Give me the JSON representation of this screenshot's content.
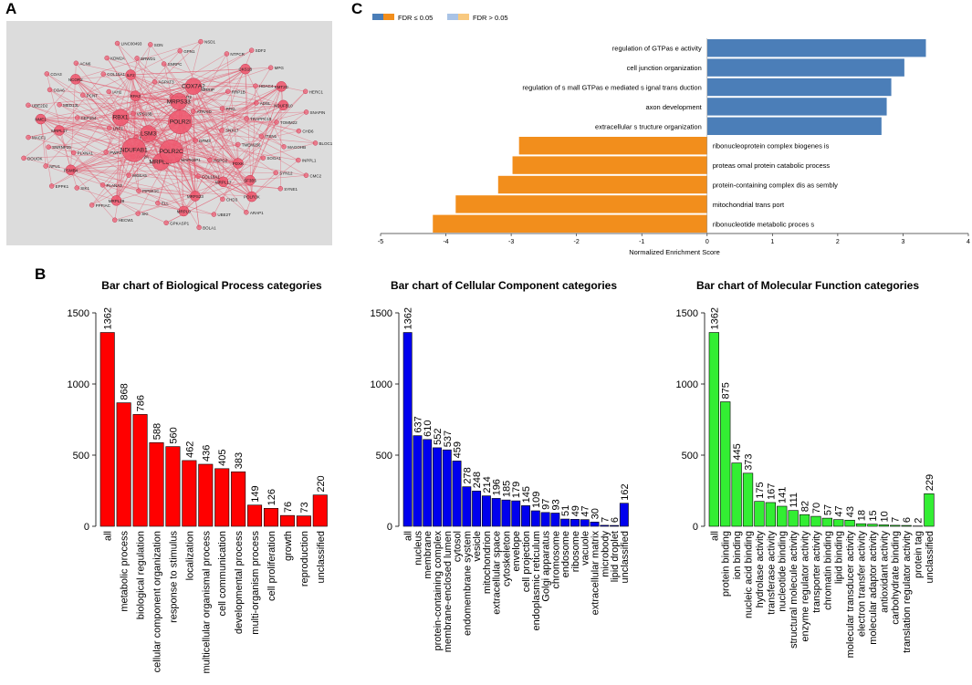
{
  "panels": {
    "a": "A",
    "b": "B",
    "c": "C"
  },
  "network": {
    "colors": {
      "background": "#dcdcdc",
      "edge": "#e35a6e",
      "node": "#ee5a70",
      "node_stroke": "#c43a52"
    },
    "nodes": [
      {
        "label": "DPM3",
        "weight": 1
      },
      {
        "label": "HAX1",
        "weight": 1
      },
      {
        "label": "ATRAID",
        "weight": 1
      },
      {
        "label": "MAPKBP1",
        "weight": 1
      },
      {
        "label": "VPS13B",
        "weight": 1
      },
      {
        "label": "SNX17",
        "weight": 1
      },
      {
        "label": "DIP2A",
        "weight": 1
      },
      {
        "label": "POFUT2",
        "weight": 1
      },
      {
        "label": "HSPG2",
        "weight": 1
      },
      {
        "label": "LRP1",
        "weight": 1
      },
      {
        "label": "PFKL",
        "weight": 1
      },
      {
        "label": "MRPL27",
        "weight": 3
      },
      {
        "label": "RPA3",
        "weight": 2
      },
      {
        "label": "TMEM256",
        "weight": 1
      },
      {
        "label": "PWP2",
        "weight": 1
      },
      {
        "label": "MRRIP",
        "weight": 1
      },
      {
        "label": "COL16A1",
        "weight": 1
      },
      {
        "label": "RBX1",
        "weight": 3
      },
      {
        "label": "TRAPPC10",
        "weight": 1
      },
      {
        "label": "MGEA5",
        "weight": 1
      },
      {
        "label": "AGPAT3",
        "weight": 1
      },
      {
        "label": "PDXK",
        "weight": 2
      },
      {
        "label": "LSM3",
        "weight": 3
      },
      {
        "label": "RRP1B",
        "weight": 1
      },
      {
        "label": "POLR2C",
        "weight": 4
      },
      {
        "label": "IAH1",
        "weight": 1
      },
      {
        "label": "ITSN1",
        "weight": 1
      },
      {
        "label": "NDUFAB1",
        "weight": 4
      },
      {
        "label": "MRPS33",
        "weight": 3
      },
      {
        "label": "MRPL17",
        "weight": 2
      },
      {
        "label": "CEP164",
        "weight": 1
      },
      {
        "label": "ADSL",
        "weight": 1
      },
      {
        "label": "PIP5K1C",
        "weight": 1
      },
      {
        "label": "ILF2",
        "weight": 2
      },
      {
        "label": "SOGA1",
        "weight": 1
      },
      {
        "label": "PLXNA1",
        "weight": 1
      },
      {
        "label": "POLR2I",
        "weight": 4
      },
      {
        "label": "MRPS23",
        "weight": 2
      },
      {
        "label": "PCNT",
        "weight": 1
      },
      {
        "label": "TOMM22",
        "weight": 1
      },
      {
        "label": "PLANA3",
        "weight": 1
      },
      {
        "label": "SNRPC",
        "weight": 1
      },
      {
        "label": "SF3B5",
        "weight": 2
      },
      {
        "label": "MRPL17",
        "weight": 2
      },
      {
        "label": "HDAC4",
        "weight": 1
      },
      {
        "label": "ELL",
        "weight": 1
      },
      {
        "label": "COL15A1",
        "weight": 1
      },
      {
        "label": "MAGOHB",
        "weight": 1
      },
      {
        "label": "PSMB4",
        "weight": 2
      },
      {
        "label": "COX7A2",
        "weight": 3
      },
      {
        "label": "CHD3",
        "weight": 1
      },
      {
        "label": "MED13L",
        "weight": 1
      },
      {
        "label": "NDUFB10",
        "weight": 2
      },
      {
        "label": "MRPL28",
        "weight": 2
      },
      {
        "label": "BRWD1",
        "weight": 1
      },
      {
        "label": "SYN12",
        "weight": 1
      },
      {
        "label": "SNRNP25",
        "weight": 1
      },
      {
        "label": "CKS1B",
        "weight": 2
      },
      {
        "label": "MRPL9",
        "weight": 2
      },
      {
        "label": "NCOR2",
        "weight": 2
      },
      {
        "label": "CHD6",
        "weight": 1
      },
      {
        "label": "SIK1",
        "weight": 1
      },
      {
        "label": "GPN1",
        "weight": 1
      },
      {
        "label": "POLR3K",
        "weight": 2
      },
      {
        "label": "NME1",
        "weight": 2
      },
      {
        "label": "KMT2D",
        "weight": 2
      },
      {
        "label": "SKI",
        "weight": 1
      },
      {
        "label": "KDM2A",
        "weight": 1
      },
      {
        "label": "INPPL1",
        "weight": 1
      },
      {
        "label": "NFU1",
        "weight": 1
      },
      {
        "label": "NTPCR",
        "weight": 1
      },
      {
        "label": "UBE2T",
        "weight": 1
      },
      {
        "label": "COA6",
        "weight": 1
      },
      {
        "label": "SNAPIN",
        "weight": 1
      },
      {
        "label": "PPFIAC",
        "weight": 1
      },
      {
        "label": "SON",
        "weight": 1
      },
      {
        "label": "SYNE1",
        "weight": 1
      },
      {
        "label": "MACF1",
        "weight": 1
      },
      {
        "label": "MPG",
        "weight": 1
      },
      {
        "label": "GPKASP1",
        "weight": 1
      },
      {
        "label": "ACN6",
        "weight": 1
      },
      {
        "label": "BLOC1S1",
        "weight": 1
      },
      {
        "label": "EPPK1",
        "weight": 1
      },
      {
        "label": "NSD1",
        "weight": 1
      },
      {
        "label": "ARAP1",
        "weight": 1
      },
      {
        "label": "UBE2D2",
        "weight": 1
      },
      {
        "label": "HERC1",
        "weight": 1
      },
      {
        "label": "HECW1",
        "weight": 1
      },
      {
        "label": "LINC00493",
        "weight": 1
      },
      {
        "label": "CMC2",
        "weight": 1
      },
      {
        "label": "DOUOK",
        "weight": 1
      },
      {
        "label": "SDF2",
        "weight": 1
      },
      {
        "label": "BOLA1",
        "weight": 1
      },
      {
        "label": "COA3",
        "weight": 1
      }
    ]
  },
  "chart_data": [
    {
      "id": "gsea",
      "type": "bar",
      "orientation": "horizontal",
      "legend": {
        "position": "top-left",
        "items": [
          {
            "label": "FDR ≤ 0.05",
            "colors": [
              "#4b7eb8",
              "#f28e1c"
            ]
          },
          {
            "label": "FDR > 0.05",
            "colors": [
              "#a9c3e6",
              "#f8c97f"
            ]
          }
        ]
      },
      "xlabel": "Normalized Enrichment Score",
      "xlim": [
        -5,
        4
      ],
      "ticks": [
        -5,
        -4,
        -3,
        -2,
        -1,
        0,
        1,
        2,
        3,
        4
      ],
      "series": [
        {
          "name": "positive",
          "color": "#4b7eb8",
          "categories": [
            "regulation of GTPas e activity",
            "cell junction organization",
            "regulation of s mall GTPas e mediated s ignal trans duction",
            "axon development",
            "extracellular s tructure organization"
          ],
          "values": [
            3.35,
            3.02,
            2.82,
            2.75,
            2.67
          ]
        },
        {
          "name": "negative",
          "color": "#f28e1c",
          "categories": [
            "ribonucleoprotein complex biogenes is",
            "proteas omal protein catabolic process",
            "protein-containing complex dis as sembly",
            "mitochondrial trans port",
            "ribonucleotide metabolic proces s"
          ],
          "values": [
            -2.88,
            -2.98,
            -3.2,
            -3.85,
            -4.2
          ]
        }
      ]
    },
    {
      "id": "bp",
      "type": "bar",
      "title": "Bar chart of Biological Process categories",
      "color": "#ff0000",
      "ylim": [
        0,
        1500
      ],
      "yticks": [
        0,
        500,
        1000,
        1500
      ],
      "categories": [
        "all",
        "metabolic process",
        "biological regulation",
        "cellular component organization",
        "response to stimulus",
        "localization",
        "multicellular organismal process",
        "cell communication",
        "developmental process",
        "multi-organism process",
        "cell proliferation",
        "growth",
        "reproduction",
        "unclassified"
      ],
      "values": [
        1362,
        868,
        786,
        588,
        560,
        462,
        436,
        405,
        383,
        149,
        126,
        76,
        73,
        220
      ]
    },
    {
      "id": "cc",
      "type": "bar",
      "title": "Bar chart of Cellular Component categories",
      "color": "#0000ee",
      "ylim": [
        0,
        1500
      ],
      "yticks": [
        0,
        500,
        1000,
        1500
      ],
      "categories": [
        "all",
        "nucleus",
        "membrane",
        "protein-containing complex",
        "membrane-enclosed lumen",
        "cytosol",
        "endomembrane system",
        "vesicle",
        "mitochondrion",
        "extracellular space",
        "cytoskeleton",
        "envelope",
        "cell projection",
        "endoplasmic reticulum",
        "Golgi apparatus",
        "chromosome",
        "endosome",
        "ribosome",
        "vacuole",
        "extracellular matrix",
        "microbody",
        "lipid droplet",
        "unclassified"
      ],
      "values": [
        1362,
        637,
        610,
        552,
        537,
        459,
        278,
        248,
        214,
        196,
        185,
        179,
        145,
        109,
        97,
        93,
        51,
        49,
        47,
        30,
        7,
        6,
        162
      ]
    },
    {
      "id": "mf",
      "type": "bar",
      "title": "Bar chart of Molecular Function categories",
      "color": "#33ee33",
      "ylim": [
        0,
        1500
      ],
      "yticks": [
        0,
        500,
        1000,
        1500
      ],
      "categories": [
        "all",
        "protein binding",
        "ion binding",
        "nucleic acid binding",
        "hydrolase activity",
        "transferase activity",
        "nucleotide binding",
        "structural molecule activity",
        "enzyme regulator activity",
        "transporter activity",
        "chromatin binding",
        "lipid binding",
        "molecular transducer activity",
        "electron transfer activity",
        "molecular adaptor activity",
        "antioxidant activity",
        "carbohydrate binding",
        "translation regulator activity",
        "protein tag",
        "unclassified"
      ],
      "values": [
        1362,
        875,
        445,
        373,
        175,
        167,
        141,
        111,
        82,
        70,
        57,
        47,
        43,
        18,
        15,
        10,
        7,
        6,
        2,
        229
      ]
    }
  ]
}
